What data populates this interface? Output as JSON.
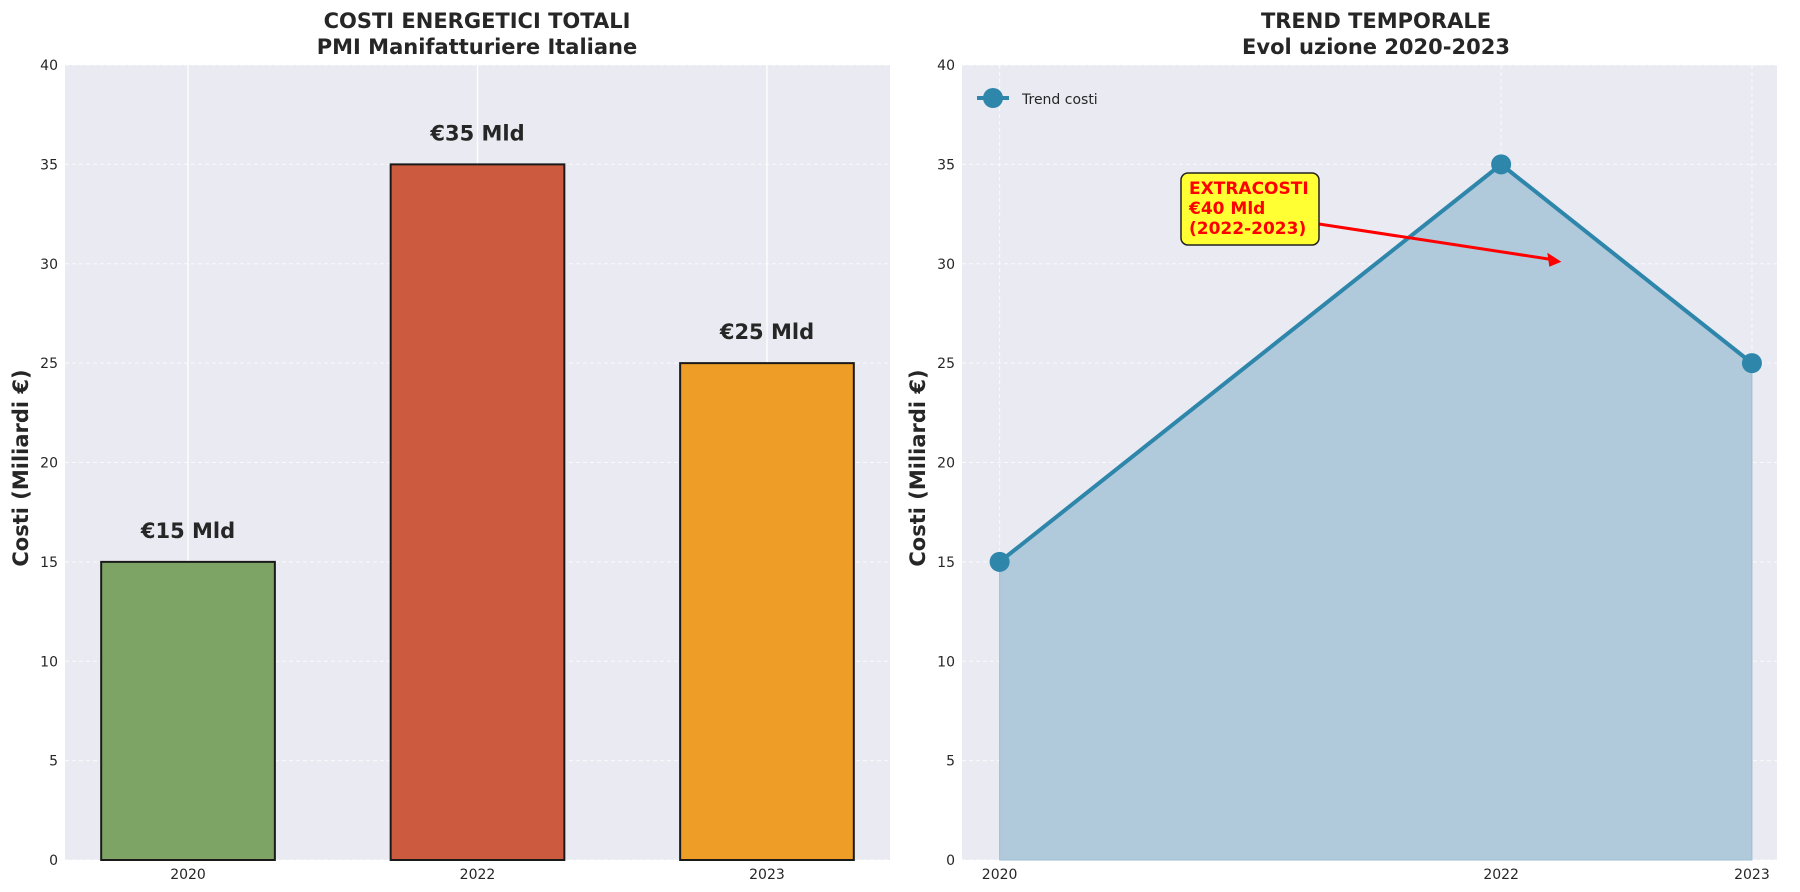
{
  "chart_data": [
    {
      "type": "bar",
      "title": "COSTI ENERGETICI TOTALI",
      "subtitle": "PMI Manifatturiere Italiane",
      "categories": [
        "2020",
        "2022",
        "2023"
      ],
      "values": [
        15,
        35,
        25
      ],
      "data_labels": [
        "€15 Mld",
        "€35 Mld",
        "€25 Mld"
      ],
      "colors": [
        "#7ea465",
        "#cb5a3e",
        "#ee9d27"
      ],
      "edge_color": "#1a1a1a",
      "xlabel": "",
      "ylabel": "Costi (Miliardi €)",
      "ylim": [
        0,
        40
      ],
      "yticks": [
        0,
        5,
        10,
        15,
        20,
        25,
        30,
        35,
        40
      ],
      "grid": true,
      "background": "#eaeaf2"
    },
    {
      "type": "area",
      "title": "TREND TEMPORALE",
      "subtitle": "Evol uzione 2020-2023",
      "x": [
        2020,
        2022,
        2023
      ],
      "y": [
        15,
        35,
        25
      ],
      "series": [
        {
          "name": "Trend costi",
          "x": [
            2020,
            2022,
            2023
          ],
          "values": [
            15,
            35,
            25
          ]
        }
      ],
      "xticks": [
        "2020",
        "2022",
        "2023"
      ],
      "xlim": [
        2019.85,
        2023.1
      ],
      "ylim": [
        0,
        40
      ],
      "yticks": [
        0,
        5,
        10,
        15,
        20,
        25,
        30,
        35,
        40
      ],
      "xlabel": "",
      "ylabel": "Costi (Miliardi €)",
      "line_color": "#2e86ab",
      "fill_color": "#b0c9db",
      "legend_position": "top-left",
      "grid": true,
      "background": "#eaeaf2",
      "annotation": {
        "lines": [
          "EXTRACOSTI",
          "€40 Mld",
          "(2022-2023)"
        ],
        "text_color": "#ff0000",
        "box_color": "#ffff33",
        "arrow_color": "#ff0000",
        "arrow_to": [
          2022.24,
          30.1
        ],
        "text_at": [
          2020.5,
          33
        ]
      }
    }
  ]
}
